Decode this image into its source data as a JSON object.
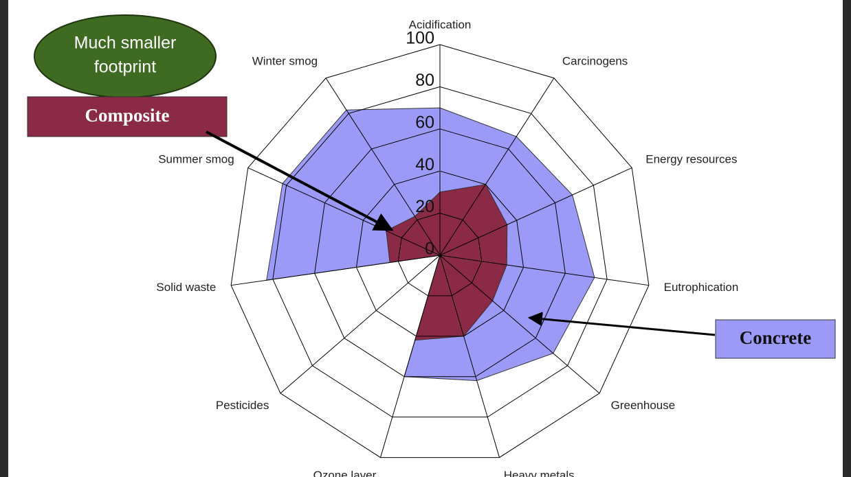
{
  "chart_data": {
    "type": "radar",
    "categories": [
      "Acidification",
      "Carcinogens",
      "Energy resources",
      "Eutrophication",
      "Greenhouse",
      "Heavy metals",
      "Ozone layer",
      "Pesticides",
      "Solid waste",
      "Summer smog",
      "Winter smog"
    ],
    "series": [
      {
        "name": "Concrete",
        "color": "#9b9bf7",
        "values": [
          70,
          67,
          69,
          74,
          71,
          62,
          60,
          0,
          83,
          82,
          82
        ]
      },
      {
        "name": "Composite",
        "color": "#8b2a47",
        "values": [
          30,
          40,
          35,
          32,
          33,
          40,
          42,
          0,
          24,
          28,
          22
        ]
      }
    ],
    "rlim": [
      0,
      100
    ],
    "rticks": [
      0,
      20,
      40,
      60,
      80,
      100
    ],
    "grid": true,
    "annotation": [
      "Much smaller",
      "footprint"
    ]
  }
}
